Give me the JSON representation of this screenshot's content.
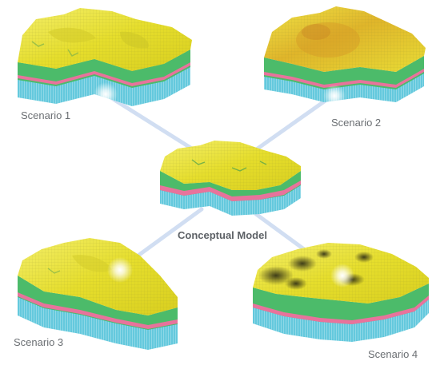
{
  "diagram": {
    "center_label": "Conceptual Model",
    "scenarios": [
      {
        "label": "Scenario 1"
      },
      {
        "label": "Scenario 2"
      },
      {
        "label": "Scenario 3"
      },
      {
        "label": "Scenario 4"
      }
    ]
  },
  "colors": {
    "surface": "#e6de2c",
    "surface_highlight": "#f2ec64",
    "layer_green": "#4cbb6a",
    "layer_pink": "#e8739c",
    "layer_cyan": "#64c9dd",
    "connector": "#c9d9f0",
    "label_text": "#6b6f73"
  }
}
